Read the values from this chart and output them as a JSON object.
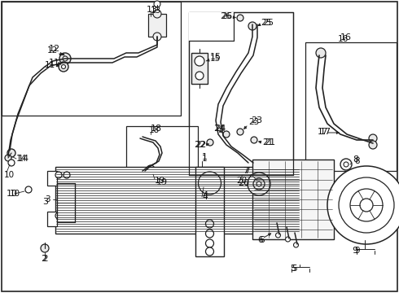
{
  "bg_color": "#ffffff",
  "line_color": "#222222",
  "label_color": "#111111",
  "fig_w": 4.9,
  "fig_h": 3.6,
  "dpi": 100
}
